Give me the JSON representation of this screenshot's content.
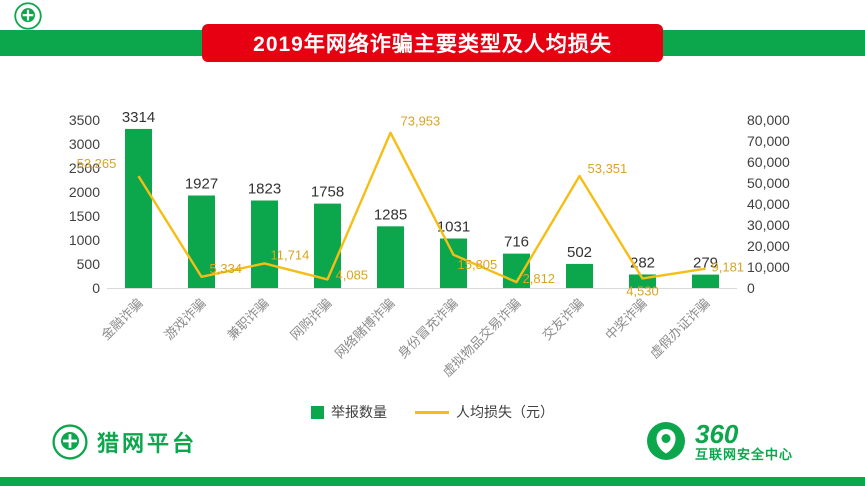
{
  "colors": {
    "green": "#0CA64D",
    "red": "#E60012",
    "line_gold": "#F6BE15",
    "label_gold": "#D9A521"
  },
  "header": {
    "title": "2019年网络诈骗主要类型及人均损失"
  },
  "legend": {
    "bars": "举报数量",
    "line": "人均损失（元）"
  },
  "footer": {
    "left_logo_text": "猎网平台",
    "right_logo_line1": "360",
    "right_logo_line2": "互联网安全中心"
  },
  "chart_data": {
    "type": "bar",
    "title": "2019年网络诈骗主要类型及人均损失",
    "categories": [
      "金融诈骗",
      "游戏诈骗",
      "兼职诈骗",
      "网购诈骗",
      "网络赌博诈骗",
      "身份冒充诈骗",
      "虚拟物品交易诈骗",
      "交友诈骗",
      "中奖诈骗",
      "虚假办证诈骗"
    ],
    "series": [
      {
        "name": "举报数量",
        "type": "bar",
        "axis": "left",
        "values": [
          3314,
          1927,
          1823,
          1758,
          1285,
          1031,
          716,
          502,
          282,
          279
        ]
      },
      {
        "name": "人均损失（元）",
        "type": "line",
        "axis": "right",
        "values": [
          53265,
          5334,
          11714,
          4085,
          73953,
          15805,
          2812,
          53351,
          4530,
          9181
        ]
      }
    ],
    "bar_labels": [
      "3314",
      "1927",
      "1823",
      "1758",
      "1285",
      "1031",
      "716",
      "502",
      "282",
      "279"
    ],
    "line_labels": [
      "53,265",
      "5,334",
      "11,714",
      "4,085",
      "73,953",
      "15,805",
      "2,812",
      "53,351",
      "4,530",
      "9,181"
    ],
    "left_axis": {
      "min": 0,
      "max": 3500,
      "step": 500,
      "ticks": [
        "0",
        "500",
        "1000",
        "1500",
        "2000",
        "2500",
        "3000",
        "3500"
      ]
    },
    "right_axis": {
      "min": 0,
      "max": 80000,
      "step": 10000,
      "ticks": [
        "0",
        "10,000",
        "20,000",
        "30,000",
        "40,000",
        "50,000",
        "60,000",
        "70,000",
        "80,000"
      ]
    },
    "grid": false,
    "legend_position": "bottom"
  }
}
